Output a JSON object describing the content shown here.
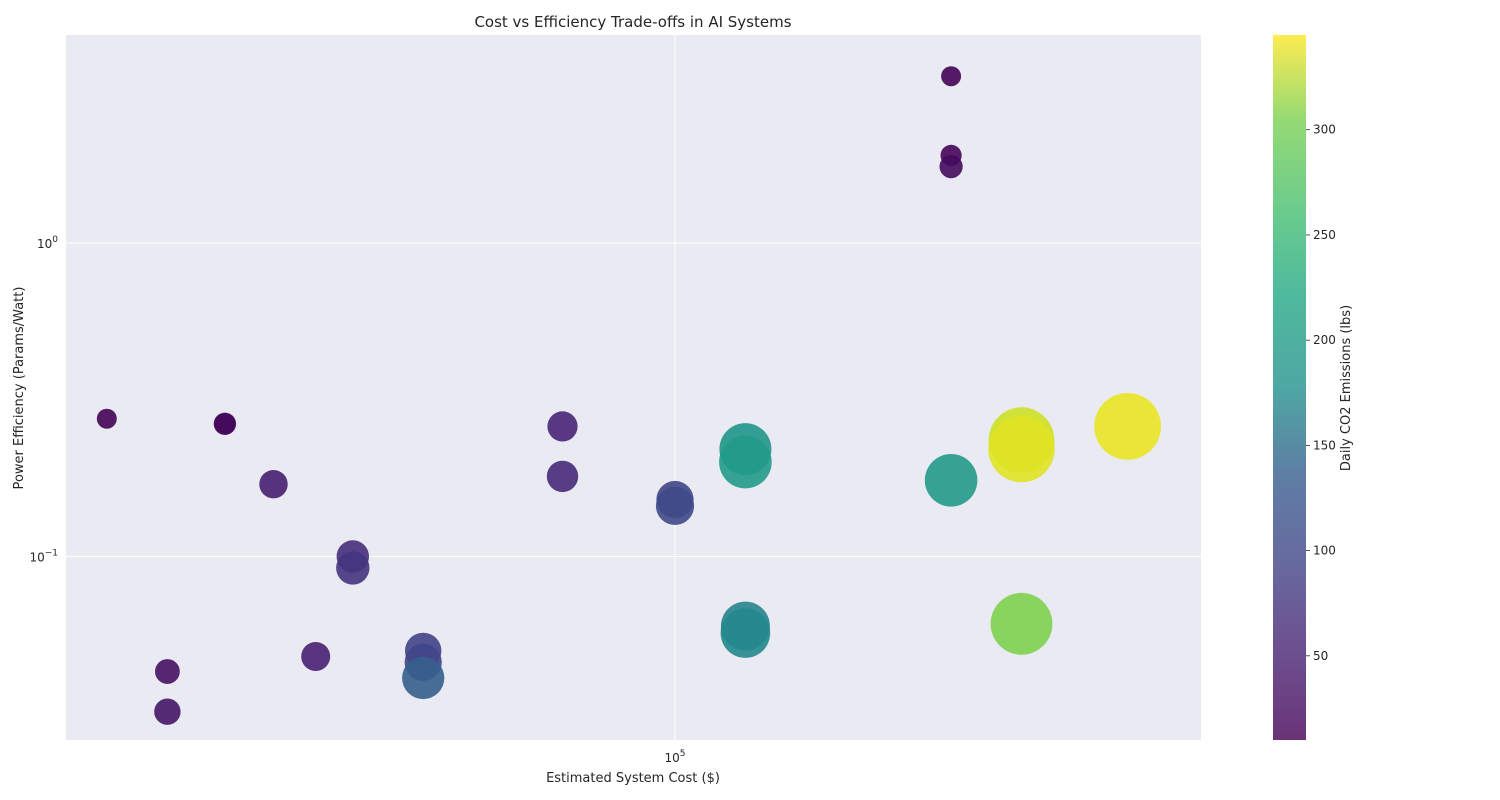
{
  "chart_data": {
    "type": "scatter",
    "title": "Cost vs Efficiency Trade-offs in AI Systems",
    "xlabel": "Estimated System Cost ($)",
    "ylabel": "Power Efficiency (Params/Watt)",
    "x_scale": "log",
    "y_scale": "log",
    "xlim": [
      14500,
      530000
    ],
    "ylim": [
      0.026,
      4.6
    ],
    "x_ticks": [
      {
        "value": 100000,
        "base": "10",
        "exp": "5"
      }
    ],
    "y_ticks": [
      {
        "value": 0.1,
        "base": "10",
        "exp": "−1"
      },
      {
        "value": 1,
        "base": "10",
        "exp": "0"
      }
    ],
    "grid": true,
    "colorbar": {
      "label": "Daily CO2 Emissions (lbs)",
      "colormap": "viridis",
      "alpha": 0.6,
      "range": [
        10,
        345
      ],
      "ticks": [
        50,
        100,
        150,
        200,
        250,
        300
      ]
    },
    "colors": {
      "plot_background": "#eaeaf2",
      "grid": "#ffffff",
      "text": "#262626"
    },
    "size_encoding": "marker area grows with CO2 value",
    "points": [
      {
        "x": 16500,
        "y": 0.275,
        "co2": 12
      },
      {
        "x": 20000,
        "y": 0.043,
        "co2": 25
      },
      {
        "x": 20000,
        "y": 0.032,
        "co2": 30
      },
      {
        "x": 24000,
        "y": 0.265,
        "co2": 15
      },
      {
        "x": 24000,
        "y": 0.265,
        "co2": 18
      },
      {
        "x": 28000,
        "y": 0.17,
        "co2": 38
      },
      {
        "x": 32000,
        "y": 0.048,
        "co2": 40
      },
      {
        "x": 36000,
        "y": 0.1,
        "co2": 55
      },
      {
        "x": 36000,
        "y": 0.092,
        "co2": 60
      },
      {
        "x": 45000,
        "y": 0.05,
        "co2": 75
      },
      {
        "x": 45000,
        "y": 0.046,
        "co2": 80
      },
      {
        "x": 45000,
        "y": 0.041,
        "co2": 110
      },
      {
        "x": 70000,
        "y": 0.26,
        "co2": 45
      },
      {
        "x": 70000,
        "y": 0.18,
        "co2": 50
      },
      {
        "x": 100000,
        "y": 0.152,
        "co2": 80
      },
      {
        "x": 100000,
        "y": 0.145,
        "co2": 85
      },
      {
        "x": 125000,
        "y": 0.06,
        "co2": 160
      },
      {
        "x": 125000,
        "y": 0.057,
        "co2": 165
      },
      {
        "x": 125000,
        "y": 0.22,
        "co2": 185
      },
      {
        "x": 125000,
        "y": 0.2,
        "co2": 190
      },
      {
        "x": 240000,
        "y": 3.4,
        "co2": 12
      },
      {
        "x": 240000,
        "y": 1.9,
        "co2": 15
      },
      {
        "x": 240000,
        "y": 1.75,
        "co2": 20
      },
      {
        "x": 240000,
        "y": 0.175,
        "co2": 190
      },
      {
        "x": 300000,
        "y": 0.22,
        "co2": 330
      },
      {
        "x": 300000,
        "y": 0.235,
        "co2": 320
      },
      {
        "x": 300000,
        "y": 0.061,
        "co2": 280
      },
      {
        "x": 420000,
        "y": 0.26,
        "co2": 335
      }
    ]
  }
}
